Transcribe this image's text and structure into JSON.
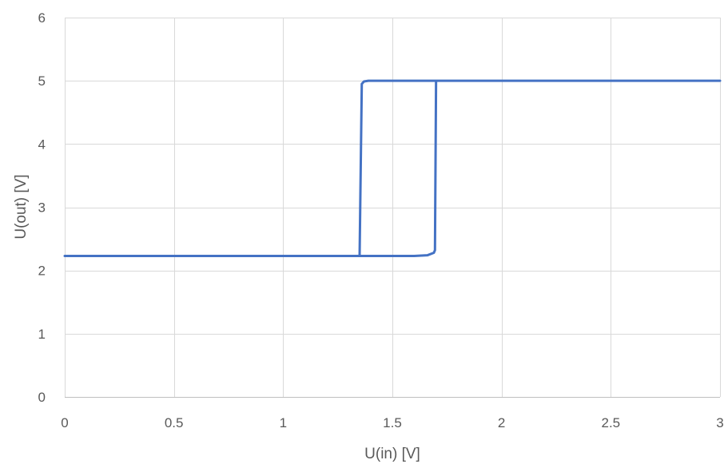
{
  "chart_data": {
    "type": "line",
    "title": "",
    "xlabel": "U(in) [V]",
    "ylabel": "U(out) [V]",
    "xlim": [
      0,
      3
    ],
    "ylim": [
      0,
      6
    ],
    "x_ticks": [
      0,
      0.5,
      1,
      1.5,
      2,
      2.5,
      3
    ],
    "x_tick_labels": [
      "0",
      "0.5",
      "1",
      "1.5",
      "2",
      "2.5",
      "3"
    ],
    "y_ticks": [
      0,
      1,
      2,
      3,
      4,
      5,
      6
    ],
    "y_tick_labels": [
      "0",
      "1",
      "2",
      "3",
      "4",
      "5",
      "6"
    ],
    "grid": true,
    "legend": "none",
    "series": [
      {
        "color": "#4472c4",
        "points": [
          [
            0,
            2.23
          ],
          [
            1.35,
            2.23
          ],
          [
            1.6,
            2.23
          ],
          [
            1.66,
            2.24
          ],
          [
            1.69,
            2.28
          ],
          [
            1.695,
            2.32
          ],
          [
            1.7,
            5.0
          ],
          [
            3.0,
            5.0
          ],
          [
            1.7,
            5.0
          ],
          [
            1.39,
            5.0
          ],
          [
            1.37,
            4.99
          ],
          [
            1.36,
            4.95
          ],
          [
            1.35,
            2.23
          ]
        ]
      }
    ]
  }
}
